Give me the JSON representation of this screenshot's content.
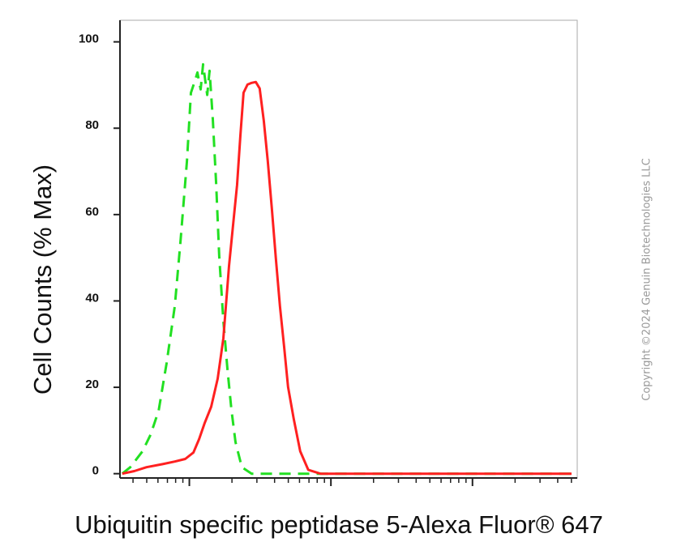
{
  "chart_data": {
    "type": "line",
    "xlabel": "Ubiquitin specific peptidase 5-Alexa Fluor® 647",
    "ylabel": "Cell Counts (% Max)",
    "annotation": "Copyright ©2024 Genuin Biotechnologies LLC",
    "xlim": [
      0.51,
      3.74
    ],
    "xticks": [
      1,
      2,
      3
    ],
    "log_minor_ticks": true,
    "ylim": [
      -1,
      105
    ],
    "yticks": [
      0,
      20,
      40,
      60,
      80,
      100
    ],
    "series": [
      {
        "color": "#22e022",
        "dashed": true,
        "x": [
          0.526,
          0.583,
          0.669,
          0.726,
          0.783,
          0.84,
          0.897,
          0.937,
          0.983,
          1.011,
          1.04,
          1.057,
          1.08,
          1.097,
          1.126,
          1.143,
          1.166,
          1.189,
          1.211,
          1.24,
          1.269,
          1.297,
          1.326,
          1.371,
          1.44,
          3.7
        ],
        "values": [
          0,
          1.5,
          5.2,
          9.0,
          14.6,
          25.7,
          38.8,
          53.7,
          72.4,
          88.2,
          91,
          92.9,
          89,
          94.8,
          87.7,
          93.3,
          82.1,
          67.2,
          50.4,
          35.4,
          24.3,
          14.9,
          7.3,
          1.5,
          0,
          0
        ]
      },
      {
        "color": "#ff2020",
        "dashed": false,
        "x": [
          0.526,
          0.611,
          0.697,
          0.811,
          0.897,
          0.971,
          1.029,
          1.069,
          1.109,
          1.154,
          1.2,
          1.24,
          1.28,
          1.314,
          1.337,
          1.36,
          1.383,
          1.411,
          1.44,
          1.469,
          1.497,
          1.526,
          1.554,
          1.583,
          1.611,
          1.64,
          1.669,
          1.697,
          1.737,
          1.783,
          1.84,
          1.926,
          3.7
        ],
        "values": [
          0,
          0.6,
          1.5,
          2.2,
          2.8,
          3.4,
          4.9,
          8.0,
          11.8,
          15.5,
          22,
          31.3,
          48.1,
          59.3,
          66.8,
          78,
          88.2,
          90.1,
          90.5,
          90.7,
          89.2,
          81.7,
          72.4,
          61.2,
          50,
          38.8,
          29.5,
          20.1,
          12.7,
          5.2,
          0.9,
          0,
          0
        ]
      }
    ]
  }
}
